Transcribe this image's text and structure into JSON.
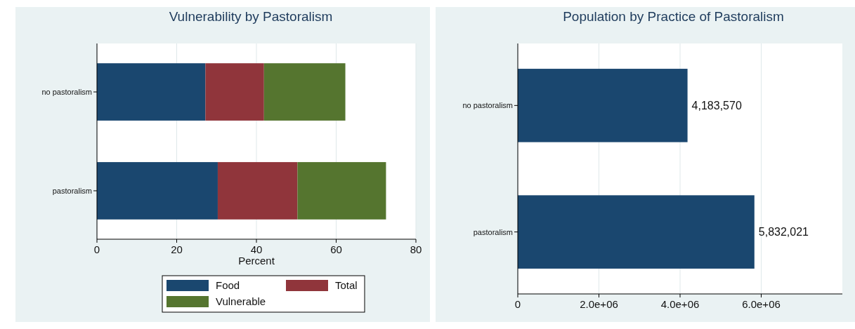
{
  "chart_data": [
    {
      "type": "bar",
      "title": "Vulnerability by Pastoralism",
      "xlabel": "Percent",
      "orientation": "horizontal",
      "stacked": true,
      "categories": [
        "no pastoralism",
        "pastoralism"
      ],
      "series": [
        {
          "name": "Food",
          "color": "#1a476f",
          "values": [
            27.2,
            30.3
          ]
        },
        {
          "name": "Total",
          "color": "#90353b",
          "values": [
            14.7,
            20.0
          ]
        },
        {
          "name": "Vulnerable",
          "color": "#55752f",
          "values": [
            20.4,
            22.2
          ]
        }
      ],
      "xlim": [
        0,
        80
      ],
      "xticks": [
        0,
        20,
        40,
        60,
        80
      ],
      "grid": "x",
      "legend": "bottom"
    },
    {
      "type": "bar",
      "title": "Population by Practice of Pastoralism",
      "orientation": "horizontal",
      "categories": [
        "no pastoralism",
        "pastoralism"
      ],
      "series": [
        {
          "color": "#1a476f",
          "values": [
            4183570,
            5832021
          ],
          "value_labels": [
            "4,183,570",
            "5,832,021"
          ]
        }
      ],
      "xlim": [
        0,
        8000000
      ],
      "xticks": [
        0,
        {
          "value": 2000000,
          "label": "2.0e+06"
        },
        {
          "value": 4000000,
          "label": "4.0e+06"
        },
        {
          "value": 6000000,
          "label": "6.0e+06"
        }
      ],
      "grid": "x",
      "legend": false
    }
  ]
}
